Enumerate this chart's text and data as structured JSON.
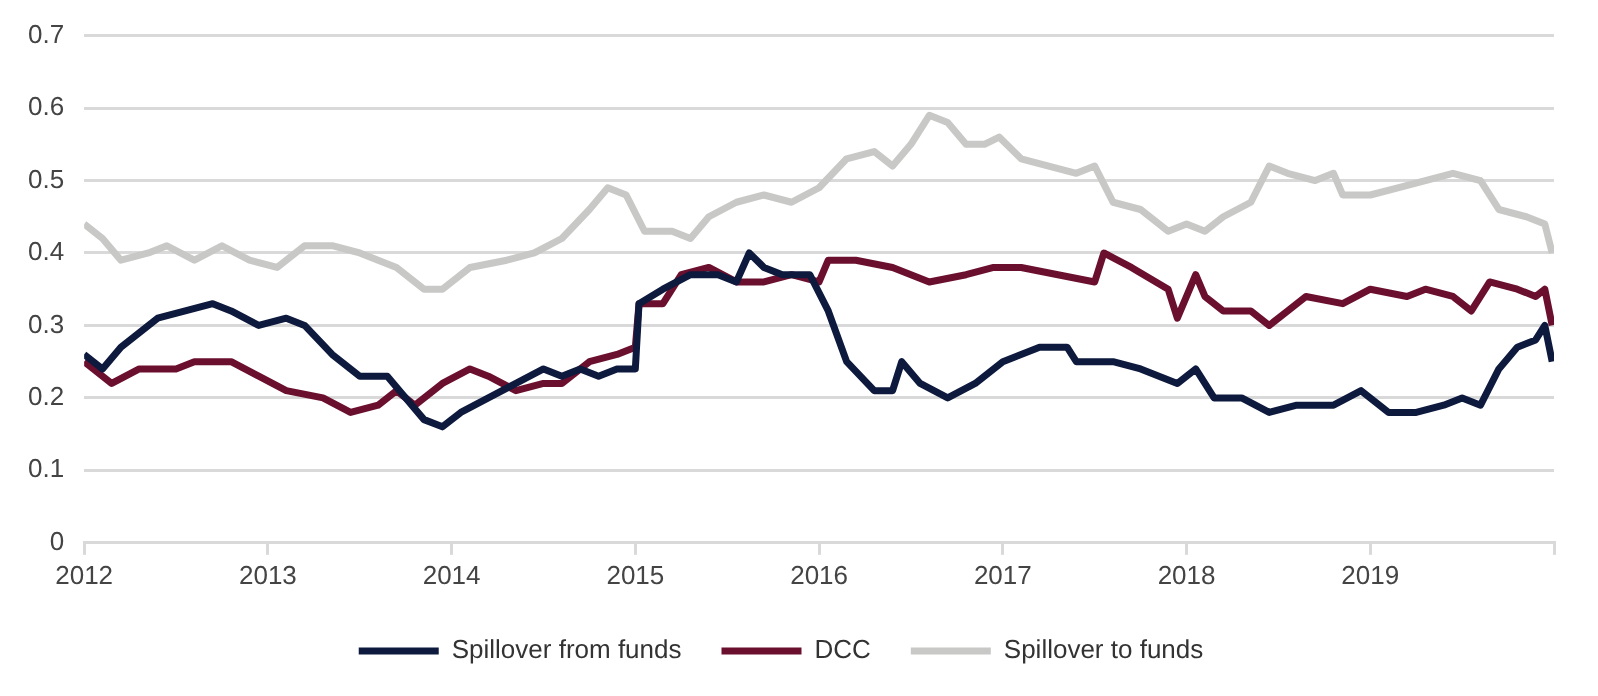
{
  "chart_data": {
    "type": "line",
    "xlim": [
      2012,
      2020
    ],
    "xticks": [
      2012,
      2013,
      2014,
      2015,
      2016,
      2017,
      2018,
      2019,
      {
        "value": 2020,
        "label": null
      }
    ],
    "ylim": [
      0,
      0.7
    ],
    "yticks": [
      0,
      0.1,
      0.2,
      0.3,
      0.4,
      0.5,
      0.6,
      0.7
    ],
    "grid": "y",
    "legend": "bottom",
    "marker": "none",
    "line_style": "solid",
    "series": [
      {
        "name": "Spillover from funds",
        "color": "#0d1a3e",
        "x": [
          2012.0,
          2012.1,
          2012.2,
          2012.3,
          2012.4,
          2012.55,
          2012.7,
          2012.8,
          2012.95,
          2013.1,
          2013.2,
          2013.35,
          2013.5,
          2013.65,
          2013.75,
          2013.85,
          2013.95,
          2014.05,
          2014.2,
          2014.35,
          2014.5,
          2014.6,
          2014.7,
          2014.8,
          2014.9,
          2015.0,
          2015.02,
          2015.15,
          2015.3,
          2015.45,
          2015.55,
          2015.62,
          2015.7,
          2015.8,
          2015.95,
          2016.05,
          2016.15,
          2016.3,
          2016.4,
          2016.45,
          2016.55,
          2016.7,
          2016.85,
          2017.0,
          2017.2,
          2017.35,
          2017.4,
          2017.6,
          2017.75,
          2017.95,
          2018.05,
          2018.15,
          2018.3,
          2018.45,
          2018.6,
          2018.8,
          2018.95,
          2019.1,
          2019.25,
          2019.4,
          2019.5,
          2019.6,
          2019.7,
          2019.8,
          2019.9,
          2019.95,
          2019.99
        ],
        "values": [
          0.26,
          0.24,
          0.27,
          0.29,
          0.31,
          0.32,
          0.33,
          0.32,
          0.3,
          0.31,
          0.3,
          0.26,
          0.23,
          0.23,
          0.2,
          0.17,
          0.16,
          0.18,
          0.2,
          0.22,
          0.24,
          0.23,
          0.24,
          0.23,
          0.24,
          0.24,
          0.33,
          0.35,
          0.37,
          0.37,
          0.36,
          0.4,
          0.38,
          0.37,
          0.37,
          0.32,
          0.25,
          0.21,
          0.21,
          0.25,
          0.22,
          0.2,
          0.22,
          0.25,
          0.27,
          0.27,
          0.25,
          0.25,
          0.24,
          0.22,
          0.24,
          0.2,
          0.2,
          0.18,
          0.19,
          0.19,
          0.21,
          0.18,
          0.18,
          0.19,
          0.2,
          0.19,
          0.24,
          0.27,
          0.28,
          0.3,
          0.25
        ]
      },
      {
        "name": "DCC",
        "color": "#6b0f2e",
        "x": [
          2012.0,
          2012.15,
          2012.3,
          2012.5,
          2012.6,
          2012.8,
          2012.95,
          2013.1,
          2013.3,
          2013.45,
          2013.6,
          2013.7,
          2013.8,
          2013.95,
          2014.1,
          2014.2,
          2014.35,
          2014.5,
          2014.6,
          2014.75,
          2014.9,
          2015.0,
          2015.02,
          2015.15,
          2015.25,
          2015.4,
          2015.55,
          2015.7,
          2015.85,
          2016.0,
          2016.05,
          2016.2,
          2016.4,
          2016.6,
          2016.8,
          2016.95,
          2017.1,
          2017.3,
          2017.5,
          2017.55,
          2017.7,
          2017.9,
          2017.95,
          2018.05,
          2018.1,
          2018.2,
          2018.35,
          2018.45,
          2018.55,
          2018.65,
          2018.85,
          2019.0,
          2019.2,
          2019.3,
          2019.45,
          2019.55,
          2019.65,
          2019.8,
          2019.9,
          2019.95,
          2019.99
        ],
        "values": [
          0.25,
          0.22,
          0.24,
          0.24,
          0.25,
          0.25,
          0.23,
          0.21,
          0.2,
          0.18,
          0.19,
          0.21,
          0.19,
          0.22,
          0.24,
          0.23,
          0.21,
          0.22,
          0.22,
          0.25,
          0.26,
          0.27,
          0.33,
          0.33,
          0.37,
          0.38,
          0.36,
          0.36,
          0.37,
          0.36,
          0.39,
          0.39,
          0.38,
          0.36,
          0.37,
          0.38,
          0.38,
          0.37,
          0.36,
          0.4,
          0.38,
          0.35,
          0.31,
          0.37,
          0.34,
          0.32,
          0.32,
          0.3,
          0.32,
          0.34,
          0.33,
          0.35,
          0.34,
          0.35,
          0.34,
          0.32,
          0.36,
          0.35,
          0.34,
          0.35,
          0.3
        ]
      },
      {
        "name": "Spillover to funds",
        "color": "#c8c8c6",
        "x": [
          2012.0,
          2012.1,
          2012.2,
          2012.35,
          2012.45,
          2012.6,
          2012.75,
          2012.9,
          2013.05,
          2013.2,
          2013.35,
          2013.5,
          2013.6,
          2013.7,
          2013.85,
          2013.95,
          2014.1,
          2014.3,
          2014.45,
          2014.6,
          2014.75,
          2014.85,
          2014.95,
          2015.05,
          2015.2,
          2015.3,
          2015.4,
          2015.55,
          2015.7,
          2015.85,
          2016.0,
          2016.15,
          2016.3,
          2016.4,
          2016.5,
          2016.6,
          2016.7,
          2016.8,
          2016.9,
          2016.98,
          2017.1,
          2017.25,
          2017.4,
          2017.5,
          2017.6,
          2017.75,
          2017.9,
          2018.0,
          2018.1,
          2018.2,
          2018.35,
          2018.45,
          2018.55,
          2018.7,
          2018.8,
          2018.85,
          2019.0,
          2019.15,
          2019.3,
          2019.45,
          2019.6,
          2019.7,
          2019.85,
          2019.95,
          2019.99
        ],
        "values": [
          0.44,
          0.42,
          0.39,
          0.4,
          0.41,
          0.39,
          0.41,
          0.39,
          0.38,
          0.41,
          0.41,
          0.4,
          0.39,
          0.38,
          0.35,
          0.35,
          0.38,
          0.39,
          0.4,
          0.42,
          0.46,
          0.49,
          0.48,
          0.43,
          0.43,
          0.42,
          0.45,
          0.47,
          0.48,
          0.47,
          0.49,
          0.53,
          0.54,
          0.52,
          0.55,
          0.59,
          0.58,
          0.55,
          0.55,
          0.56,
          0.53,
          0.52,
          0.51,
          0.52,
          0.47,
          0.46,
          0.43,
          0.44,
          0.43,
          0.45,
          0.47,
          0.52,
          0.51,
          0.5,
          0.51,
          0.48,
          0.48,
          0.49,
          0.5,
          0.51,
          0.5,
          0.46,
          0.45,
          0.44,
          0.4
        ]
      }
    ]
  }
}
